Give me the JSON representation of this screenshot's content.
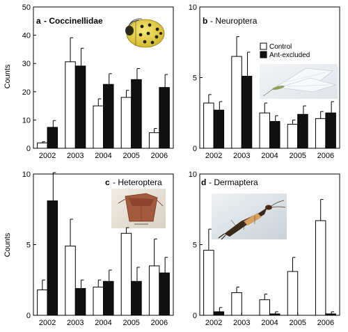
{
  "legend": {
    "control_label": "Control",
    "ant_label": "Ant-excluded",
    "control_color": "#ffffff",
    "ant_color": "#111111",
    "placement": "top-right of panel b"
  },
  "ylabel": "Counts",
  "chart_data": [
    {
      "type": "bar",
      "panel_letter": "a",
      "title": "- Coccinellidae",
      "photo": "ladybird-beetle-photo",
      "categories": [
        "2002",
        "2003",
        "2004",
        "2005",
        "2006"
      ],
      "ylabel": "Counts",
      "ylim": [
        0,
        50
      ],
      "yticks": [
        "0",
        "10",
        "20",
        "30",
        "40",
        "50"
      ],
      "series": [
        {
          "name": "Control",
          "values": [
            1.9,
            30.6,
            15.0,
            18.0,
            5.5
          ],
          "errors": [
            0.4,
            8.5,
            2.5,
            2.5,
            1.5
          ]
        },
        {
          "name": "Ant-excluded",
          "values": [
            7.4,
            29.1,
            22.6,
            24.3,
            21.5
          ],
          "errors": [
            2.4,
            6.3,
            3.8,
            3.9,
            4.6
          ]
        }
      ]
    },
    {
      "type": "bar",
      "panel_letter": "b",
      "title": "- Neuroptera",
      "photo": "lacewing-photo",
      "categories": [
        "2002",
        "2003",
        "2004",
        "2005",
        "2006"
      ],
      "ylabel": "",
      "ylim": [
        0,
        10
      ],
      "yticks": [
        "0",
        "5",
        "10"
      ],
      "series": [
        {
          "name": "Control",
          "values": [
            3.2,
            6.5,
            2.5,
            1.7,
            2.1
          ],
          "errors": [
            0.6,
            1.4,
            0.7,
            0.3,
            0.5
          ]
        },
        {
          "name": "Ant-excluded",
          "values": [
            2.7,
            5.1,
            1.9,
            2.4,
            2.5
          ],
          "errors": [
            0.6,
            1.7,
            0.4,
            0.6,
            0.8
          ]
        }
      ]
    },
    {
      "type": "bar",
      "panel_letter": "c",
      "title": "- Heteroptera",
      "photo": "true-bug-photo",
      "categories": [
        "2002",
        "2003",
        "2004",
        "2005",
        "2006"
      ],
      "ylabel": "Counts",
      "ylim": [
        0,
        10
      ],
      "yticks": [
        "0",
        "5",
        "10"
      ],
      "series": [
        {
          "name": "Control",
          "values": [
            1.8,
            4.9,
            2.0,
            5.8,
            3.5
          ],
          "errors": [
            0.7,
            1.9,
            0.5,
            0.4,
            1.9
          ]
        },
        {
          "name": "Ant-excluded",
          "values": [
            8.1,
            1.9,
            2.4,
            2.4,
            3.0
          ],
          "errors": [
            2.0,
            0.6,
            0.8,
            1.0,
            1.1
          ]
        }
      ]
    },
    {
      "type": "bar",
      "panel_letter": "d",
      "title": "- Dermaptera",
      "photo": "earwig-photo",
      "categories": [
        "2002",
        "2003",
        "2004",
        "2005",
        "2006"
      ],
      "ylabel": "",
      "ylim": [
        0,
        10
      ],
      "yticks": [
        "0",
        "5",
        "10"
      ],
      "series": [
        {
          "name": "Control",
          "values": [
            4.6,
            1.6,
            1.1,
            3.1,
            6.7
          ],
          "errors": [
            1.5,
            0.4,
            0.4,
            1.0,
            1.5
          ]
        },
        {
          "name": "Ant-excluded",
          "values": [
            0.25,
            0.0,
            0.1,
            0.0,
            0.1
          ],
          "errors": [
            0.3,
            0.0,
            0.15,
            0.0,
            0.15
          ]
        }
      ]
    }
  ]
}
